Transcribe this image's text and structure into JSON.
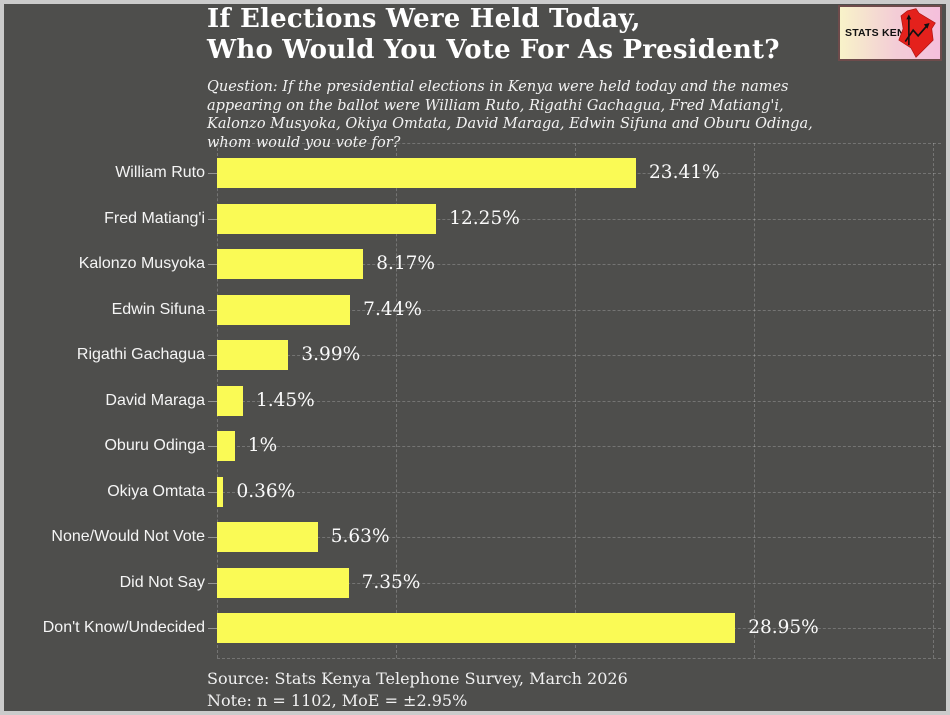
{
  "header": {
    "title_line1": "If Elections Were Held Today,",
    "title_line2": "Who Would You Vote For As President?",
    "question": "Question: If the presidential elections in Kenya were held today and the names\nappearing on the ballot were William Ruto, Rigathi Gachagua, Fred Matiang'i,\nKalonzo Musyoka, Okiya Omtata, David Maraga, Edwin Sifuna and Oburu Odinga,\nwhom would you vote for?"
  },
  "logo": {
    "text": "STATS KENYA",
    "map_color": "#e4211c",
    "background_left": "#f8f3c9",
    "background_right": "#f5bfdc"
  },
  "chart_data": {
    "type": "bar",
    "orientation": "horizontal",
    "title": "If Elections Were Held Today, Who Would You Vote For As President?",
    "categories": [
      "William Ruto",
      "Fred Matiang'i",
      "Kalonzo Musyoka",
      "Edwin Sifuna",
      "Rigathi Gachagua",
      "David Maraga",
      "Oburu Odinga",
      "Okiya Omtata",
      "None/Would Not Vote",
      "Did Not Say",
      "Don't Know/Undecided"
    ],
    "values": [
      23.41,
      12.25,
      8.17,
      7.44,
      3.99,
      1.45,
      1,
      0.36,
      5.63,
      7.35,
      28.95
    ],
    "value_labels": [
      "23.41%",
      "12.25%",
      "8.17%",
      "7.44%",
      "3.99%",
      "1.45%",
      "1%",
      "0.36%",
      "5.63%",
      "7.35%",
      "28.95%"
    ],
    "xlim": [
      0,
      40.4
    ],
    "xticks": [
      0,
      10,
      20,
      30,
      40
    ],
    "grid": true,
    "grid_style": "dashed",
    "bar_color": "#fafa55",
    "background": "#4e4e4c",
    "label_color": "#f5f5f5",
    "value_color": "#fafafa"
  },
  "footer": {
    "source": "Source: Stats Kenya Telephone Survey, March 2026",
    "note": "Note: n = 1102, MoE = ±2.95%"
  }
}
